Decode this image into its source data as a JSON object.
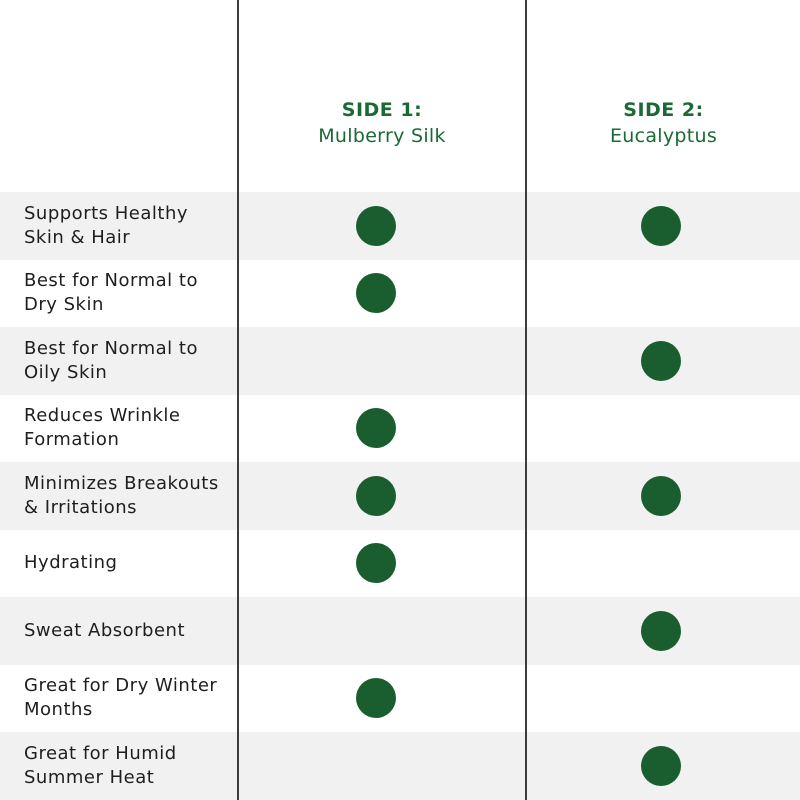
{
  "columns": [
    {
      "side": "SIDE 1:",
      "material": "Mulberry Silk"
    },
    {
      "side": "SIDE 2:",
      "material": "Eucalyptus"
    }
  ],
  "colors": {
    "accent": "#1a6a35",
    "dot": "#1a5e30",
    "row_shade": "#f1f1f1",
    "divider": "#3c3c3c"
  },
  "rows": [
    {
      "feature": "Supports Healthy\nSkin & Hair",
      "side1": true,
      "side2": true
    },
    {
      "feature": "Best for Normal to\nDry Skin",
      "side1": true,
      "side2": false
    },
    {
      "feature": "Best for Normal to\nOily Skin",
      "side1": false,
      "side2": true
    },
    {
      "feature": "Reduces Wrinkle\nFormation",
      "side1": true,
      "side2": false
    },
    {
      "feature": "Minimizes Breakouts\n& Irritations",
      "side1": true,
      "side2": true
    },
    {
      "feature": "Hydrating",
      "side1": true,
      "side2": false
    },
    {
      "feature": "Sweat Absorbent",
      "side1": false,
      "side2": true
    },
    {
      "feature": "Great for Dry Winter\nMonths",
      "side1": true,
      "side2": false
    },
    {
      "feature": "Great for Humid\nSummer Heat",
      "side1": false,
      "side2": true
    }
  ]
}
